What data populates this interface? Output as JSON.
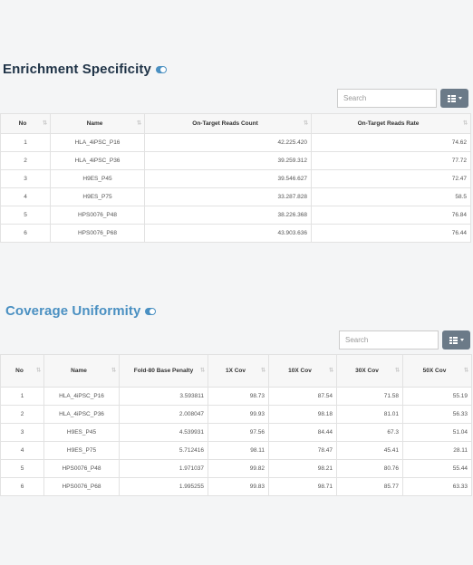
{
  "enrichment": {
    "title": "Enrichment Specificity",
    "search_placeholder": "Search",
    "columns": [
      "No",
      "Name",
      "On-Target Reads Count",
      "On-Target Reads Rate"
    ],
    "rows": [
      [
        "1",
        "HLA_4iPSC_P16",
        "42.225.420",
        "74.62"
      ],
      [
        "2",
        "HLA_4iPSC_P36",
        "39.259.312",
        "77.72"
      ],
      [
        "3",
        "H9ES_P45",
        "39.546.627",
        "72.47"
      ],
      [
        "4",
        "H9ES_P75",
        "33.287.828",
        "58.5"
      ],
      [
        "5",
        "HPS0076_P48",
        "38.226.368",
        "76.84"
      ],
      [
        "6",
        "HPS0076_P68",
        "43.903.636",
        "76.44"
      ]
    ]
  },
  "coverage": {
    "title": "Coverage Uniformity",
    "search_placeholder": "Search",
    "columns": [
      "No",
      "Name",
      "Fold-80 Base Penalty",
      "1X Cov",
      "10X Cov",
      "30X Cov",
      "50X Cov"
    ],
    "rows": [
      [
        "1",
        "HLA_4iPSC_P16",
        "3.593811",
        "98.73",
        "87.54",
        "71.58",
        "55.19"
      ],
      [
        "2",
        "HLA_4iPSC_P36",
        "2.008047",
        "99.93",
        "98.18",
        "81.01",
        "56.33"
      ],
      [
        "3",
        "H9ES_P45",
        "4.539931",
        "97.56",
        "84.44",
        "67.3",
        "51.04"
      ],
      [
        "4",
        "H9ES_P75",
        "5.712416",
        "98.11",
        "78.47",
        "45.41",
        "28.11"
      ],
      [
        "5",
        "HPS0076_P48",
        "1.971037",
        "99.82",
        "98.21",
        "80.76",
        "55.44"
      ],
      [
        "6",
        "HPS0076_P68",
        "1.995255",
        "99.83",
        "98.71",
        "85.77",
        "63.33"
      ]
    ]
  },
  "colors": {
    "title_dark": "#1f3347",
    "title_blue": "#4a90c2",
    "button": "#6b7a88"
  },
  "icons": [
    "toggle-on-icon",
    "grid-columns-icon",
    "caret-down-icon",
    "sort-icon"
  ]
}
